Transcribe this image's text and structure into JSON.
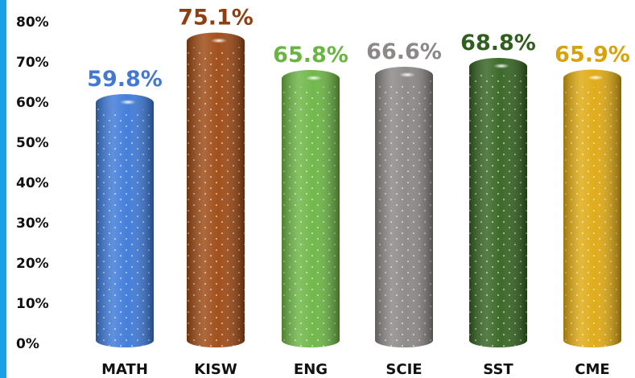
{
  "chart_data": {
    "type": "bar",
    "categories": [
      "MATH",
      "KISW",
      "ENG",
      "SCIE",
      "SST",
      "CME"
    ],
    "values": [
      59.8,
      75.1,
      65.8,
      66.6,
      68.8,
      65.9
    ],
    "data_labels": [
      "59.8%",
      "75.1%",
      "65.8%",
      "66.6%",
      "68.8%",
      "65.9%"
    ],
    "colors": [
      "#3b78d8",
      "#9c4710",
      "#6ab542",
      "#8a8585",
      "#33621f",
      "#dea80e"
    ],
    "label_colors": [
      "#4479d3",
      "#8e3e10",
      "#6ab542",
      "#8c8888",
      "#2f5e1e",
      "#d9a20a"
    ],
    "y_ticks": [
      "0%",
      "10%",
      "20%",
      "30%",
      "40%",
      "50%",
      "60%",
      "70%",
      "80%"
    ],
    "ylim": [
      0,
      80
    ],
    "title": "",
    "xlabel": "",
    "ylabel": "",
    "grid": false,
    "legend": "none"
  },
  "accent_color": "#1aa0e6"
}
